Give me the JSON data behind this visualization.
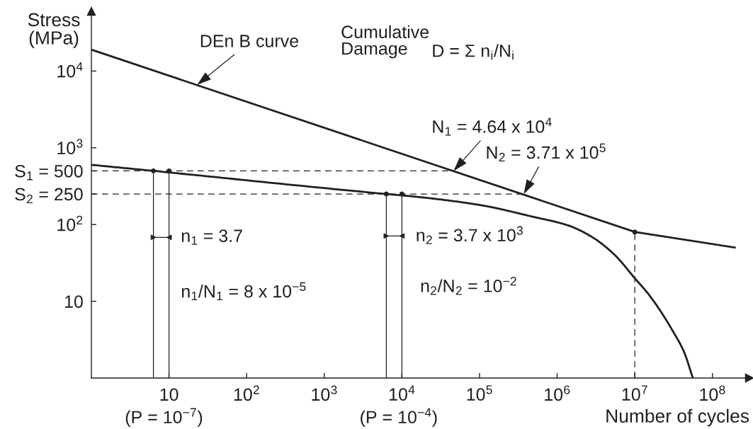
{
  "chart_data": {
    "type": "line",
    "xlabel": "Number of cycles",
    "ylabel": "Stress\n(MPa)",
    "log": "xy",
    "xlim": [
      1,
      300000000
    ],
    "ylim": [
      1,
      60000
    ],
    "xticks": [
      10,
      {
        "value": 100,
        "label": "10$^{2}$"
      },
      {
        "value": 1000,
        "label": "10$^{3}$"
      },
      {
        "value": 10000,
        "label": "10$^{4}$"
      },
      {
        "value": 100000,
        "label": "10$^{5}$"
      },
      {
        "value": 1000000,
        "label": "10$^{6}$"
      },
      {
        "value": 10000000,
        "label": "10$^{7}$"
      },
      {
        "value": 100000000,
        "label": "10$^{8}$"
      }
    ],
    "yticks": [
      10,
      {
        "value": 100,
        "label": "10$^{2}$"
      },
      {
        "value": 250,
        "label": "S$_{2}$ = 250"
      },
      {
        "value": 500,
        "label": "S$_{1}$ = 500"
      },
      {
        "value": 1000,
        "label": "10$^{3}$"
      },
      {
        "value": 10000,
        "label": "10$^{4}$"
      }
    ],
    "series": [
      {
        "color": "#231f20",
        "x": [
          1,
          10000000,
          200000000
        ],
        "values": [
          19000,
          80,
          50
        ]
      },
      {
        "color": "#231f20",
        "x": [
          1,
          6.3,
          6300,
          10000,
          27000,
          110000,
          460000,
          1400000,
          2800000,
          5400000,
          10000000,
          15000000,
          21000000,
          30000000,
          43000000,
          56000000
        ],
        "values": [
          600,
          500,
          250,
          240,
          216,
          177,
          128,
          97,
          69,
          41,
          20,
          12.4,
          7.7,
          4.3,
          2.2,
          1
        ]
      },
      {
        "color": "#231f20",
        "line_style": "dashed",
        "x": [
          1,
          46400
        ],
        "values": [
          500,
          500
        ]
      },
      {
        "color": "#231f20",
        "line_style": "dashed",
        "x": [
          1,
          371000
        ],
        "values": [
          250,
          250
        ]
      },
      {
        "type": "lollipop",
        "marker": "circle",
        "color": "#231f20",
        "line_style": "dashed",
        "x": [
          10000000
        ],
        "values": [
          80
        ]
      },
      {
        "type": "lollipop",
        "marker": "circle",
        "color": "#231f20",
        "x": [
          6.3,
          10,
          6300,
          10000
        ],
        "values": [
          500,
          500,
          250,
          250
        ]
      },
      {
        "color": "#231f20",
        "marker": "triangle",
        "x": [
          6.3,
          10
        ],
        "values": [
          68,
          68
        ]
      },
      {
        "color": "#231f20",
        "marker": "triangle",
        "x": [
          6300,
          10000
        ],
        "values": [
          71,
          71
        ]
      }
    ],
    "annotations": [
      {
        "text": "DEn B curve",
        "x": 23,
        "y": 6600
      },
      "Cumulative\nDamage",
      "D = Σ n$_{i}$/N$_{i}$",
      {
        "text": "N$_{1}$ = 4.64 x 10$^{4}$",
        "x": 46400,
        "y": 500
      },
      {
        "text": "N$_{2}$ = 3.71 x 10$^{5}$",
        "x": 371000,
        "y": 250
      },
      {
        "text": "n$_{1}$ = 3.7",
        "x": 10,
        "y": 68
      },
      {
        "text": "n$_{2}$ = 3.7 x 10$^{3}$",
        "x": 10000,
        "y": 71
      },
      "n$_{1}$/N$_{1}$ = 8 x 10$^{−5}$",
      "n$_{2}$/N$_{2}$ = 10$^{−2}$",
      "(P = 10$^{−7}$)",
      "(P = 10$^{−4}$)"
    ]
  }
}
